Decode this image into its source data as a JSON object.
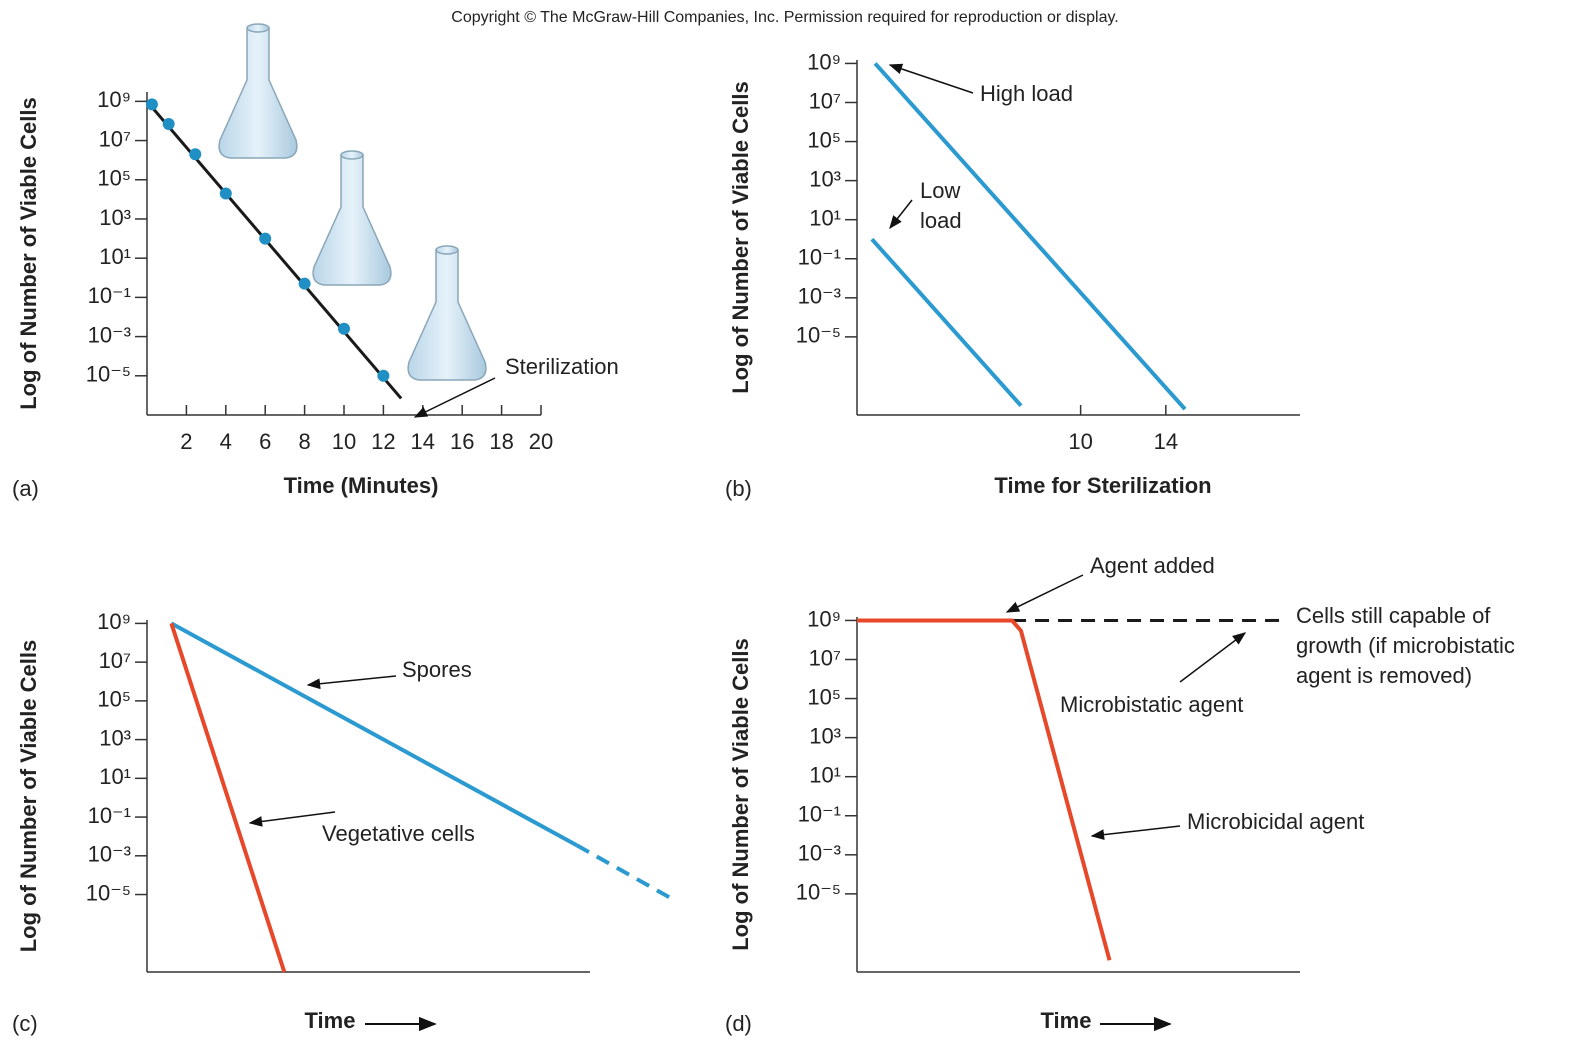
{
  "header": {
    "copyright": "Copyright © The McGraw-Hill Companies, Inc. Permission required for reproduction or display."
  },
  "chart_data": [
    {
      "type": "line",
      "label": "(a)",
      "ylabel": "Log of Number of Viable Cells",
      "xlabel": "Time (Minutes)",
      "log_y": true,
      "ylim": [
        1e-07,
        3000000000.0
      ],
      "yticks": [
        {
          "value": 1000000000.0,
          "label": "10⁹"
        },
        {
          "value": 10000000.0,
          "label": "10⁷"
        },
        {
          "value": 100000.0,
          "label": "10⁵"
        },
        {
          "value": 1000,
          "label": "10³"
        },
        {
          "value": 10,
          "label": "10¹"
        },
        {
          "value": 0.1,
          "label": "10⁻¹"
        },
        {
          "value": 0.001,
          "label": "10⁻³"
        },
        {
          "value": 1e-05,
          "label": "10⁻⁵"
        }
      ],
      "xlim": [
        0,
        20
      ],
      "xticks": [
        2,
        4,
        6,
        8,
        10,
        12,
        14,
        16,
        18,
        20
      ],
      "series": [
        {
          "color": "#1a1a1a",
          "x": [
            0,
            12.9
          ],
          "values": [
            1000000000.0,
            7e-07
          ]
        },
        {
          "color": "#1f8fc4",
          "markers": true,
          "line": false,
          "x": [
            0.25,
            1.1,
            2.45,
            4,
            6,
            8,
            10,
            12
          ],
          "values": [
            700000000.0,
            70000000.0,
            2000000.0,
            20000.0,
            100,
            0.5,
            0.0025,
            1e-05
          ]
        }
      ],
      "annotations": [
        "Sterilization"
      ]
    },
    {
      "type": "line",
      "label": "(b)",
      "ylabel": "Log of Number of Viable Cells",
      "xlabel": "Time for Sterilization",
      "log_y": true,
      "ylim": [
        1e-09,
        1500000000.0
      ],
      "yticks": [
        {
          "value": 1000000000.0,
          "label": "10⁹"
        },
        {
          "value": 10000000.0,
          "label": "10⁷"
        },
        {
          "value": 100000.0,
          "label": "10⁵"
        },
        {
          "value": 1000,
          "label": "10³"
        },
        {
          "value": 10,
          "label": "10¹"
        },
        {
          "value": 0.1,
          "label": "10⁻¹"
        },
        {
          "value": 0.001,
          "label": "10⁻³"
        },
        {
          "value": 1e-05,
          "label": "10⁻⁵"
        }
      ],
      "xlim": [
        -0.5,
        20.3
      ],
      "xticks": [
        10,
        14
      ],
      "series": [
        {
          "color": "#2a9ad0",
          "x": [
            0.35,
            14.9
          ],
          "values": [
            1000000000.0,
            2e-09
          ]
        },
        {
          "color": "#2a9ad0",
          "x": [
            0.2,
            7.2
          ],
          "values": [
            1,
            3e-09
          ]
        }
      ],
      "annotations": [
        "High load",
        [
          "Low",
          "load"
        ]
      ]
    },
    {
      "type": "line",
      "label": "(c)",
      "ylabel": "Log of Number of Viable Cells",
      "xlabel": "Time",
      "log_y": true,
      "ylim": [
        1e-09,
        1500000000.0
      ],
      "yticks": [
        {
          "value": 1000000000.0,
          "label": "10⁹"
        },
        {
          "value": 10000000.0,
          "label": "10⁷"
        },
        {
          "value": 100000.0,
          "label": "10⁵"
        },
        {
          "value": 1000,
          "label": "10³"
        },
        {
          "value": 10,
          "label": "10¹"
        },
        {
          "value": 0.1,
          "label": "10⁻¹"
        },
        {
          "value": 0.001,
          "label": "10⁻³"
        },
        {
          "value": 1e-05,
          "label": "10⁻⁵"
        }
      ],
      "xlim": [
        0,
        10
      ],
      "xticks": [],
      "series": [
        {
          "name": "Spores",
          "color": "#2a9ad0",
          "x": [
            0.55,
            9.7
          ],
          "values": [
            1000000000.0,
            0.0035
          ]
        },
        {
          "color": "#2a9ad0",
          "dashed": true,
          "x": [
            9.7,
            11.8
          ],
          "values": [
            0.0035,
            7e-06
          ]
        },
        {
          "name": "Vegetative cells",
          "color": "#e8482a",
          "x": [
            0.55,
            3.1
          ],
          "values": [
            1000000000.0,
            1e-09
          ]
        }
      ]
    },
    {
      "type": "line",
      "label": "(d)",
      "ylabel": "Log of Number of Viable Cells",
      "xlabel": "Time",
      "log_y": true,
      "ylim": [
        1e-09,
        1500000000.0
      ],
      "yticks": [
        {
          "value": 1000000000.0,
          "label": "10⁹"
        },
        {
          "value": 10000000.0,
          "label": "10⁷"
        },
        {
          "value": 100000.0,
          "label": "10⁵"
        },
        {
          "value": 1000,
          "label": "10³"
        },
        {
          "value": 10,
          "label": "10¹"
        },
        {
          "value": 0.1,
          "label": "10⁻¹"
        },
        {
          "value": 0.001,
          "label": "10⁻³"
        },
        {
          "value": 1e-05,
          "label": "10⁻⁵"
        }
      ],
      "xlim": [
        0,
        10
      ],
      "xticks": [],
      "series": [
        {
          "name": "Microbistatic agent",
          "color": "#1a1a1a",
          "dashed": true,
          "x": [
            3.5,
            9.7
          ],
          "values": [
            1000000000.0,
            1000000000.0
          ]
        },
        {
          "name": "Microbicidal agent",
          "color": "#e8482a",
          "x": [
            0,
            3.5,
            3.7,
            5.7
          ],
          "values": [
            1000000000.0,
            1000000000.0,
            300000000.0,
            4e-09
          ]
        }
      ],
      "annotations": [
        "Agent added",
        [
          "Cells still capable of",
          "growth (if microbistatic",
          "agent is removed)"
        ]
      ]
    }
  ]
}
